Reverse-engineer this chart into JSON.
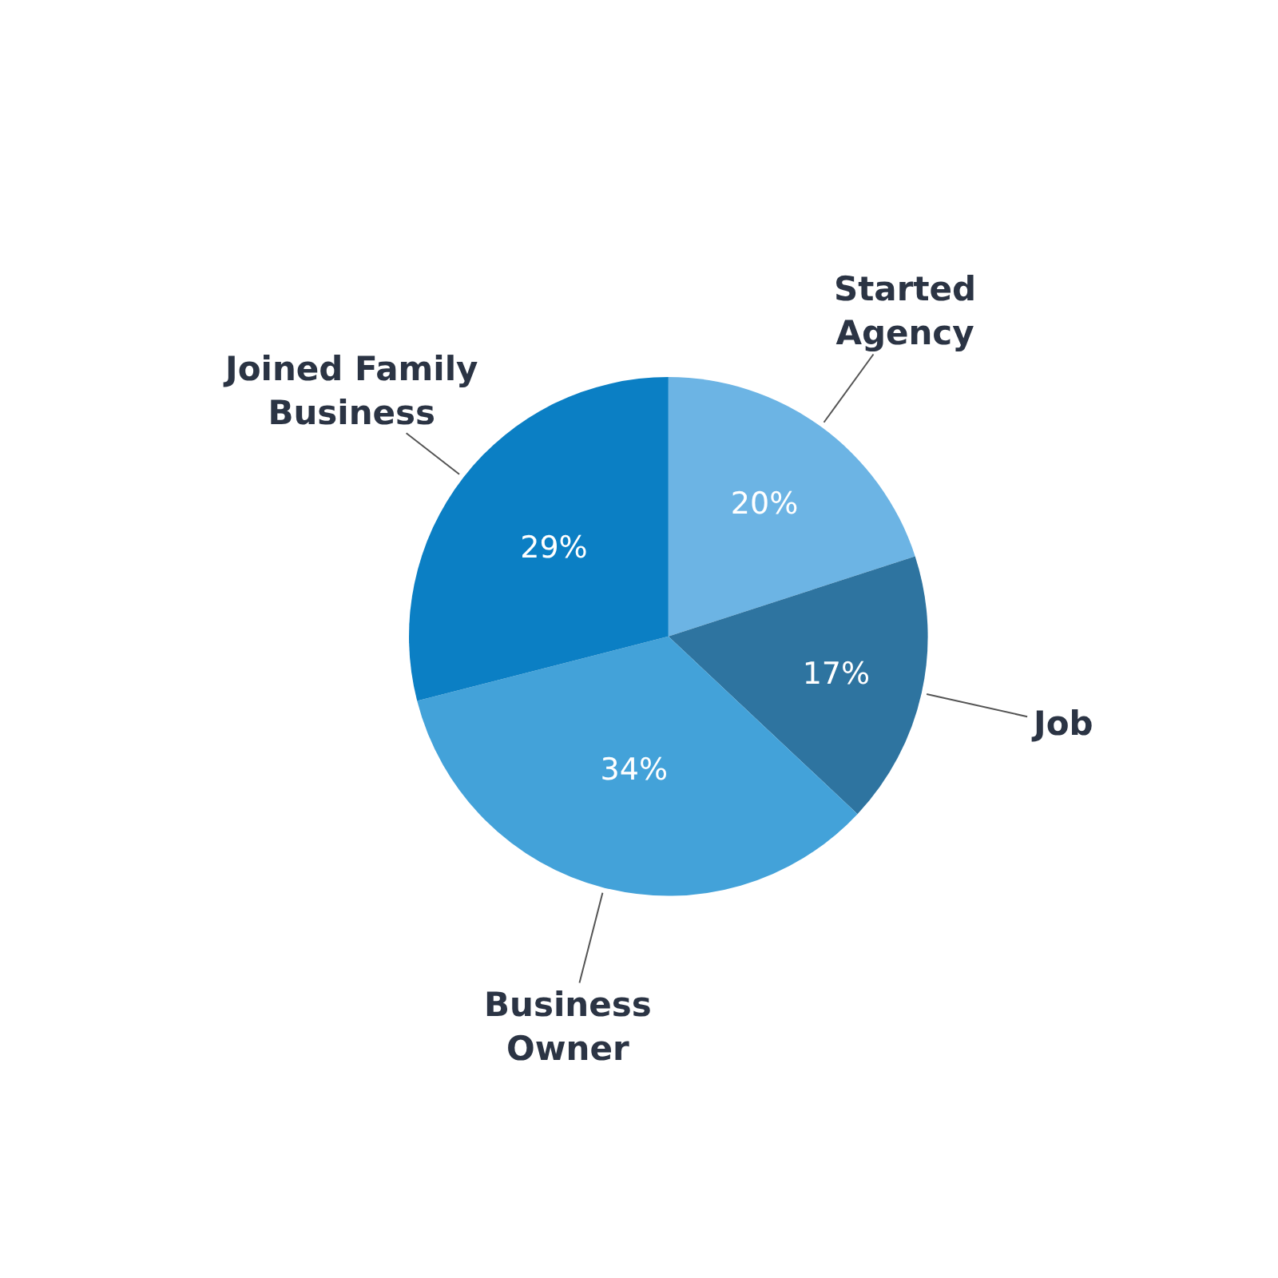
{
  "chart_data": {
    "type": "pie",
    "categories": [
      "Started Agency",
      "Job",
      "Business Owner",
      "Joined Family Business"
    ],
    "values": [
      20,
      17,
      34,
      29
    ],
    "colors": [
      "#6cb4e4",
      "#2e74a0",
      "#43a2d9",
      "#0b7fc4"
    ],
    "value_labels": [
      "20%",
      "17%",
      "34%",
      "29%"
    ],
    "legend": false
  }
}
